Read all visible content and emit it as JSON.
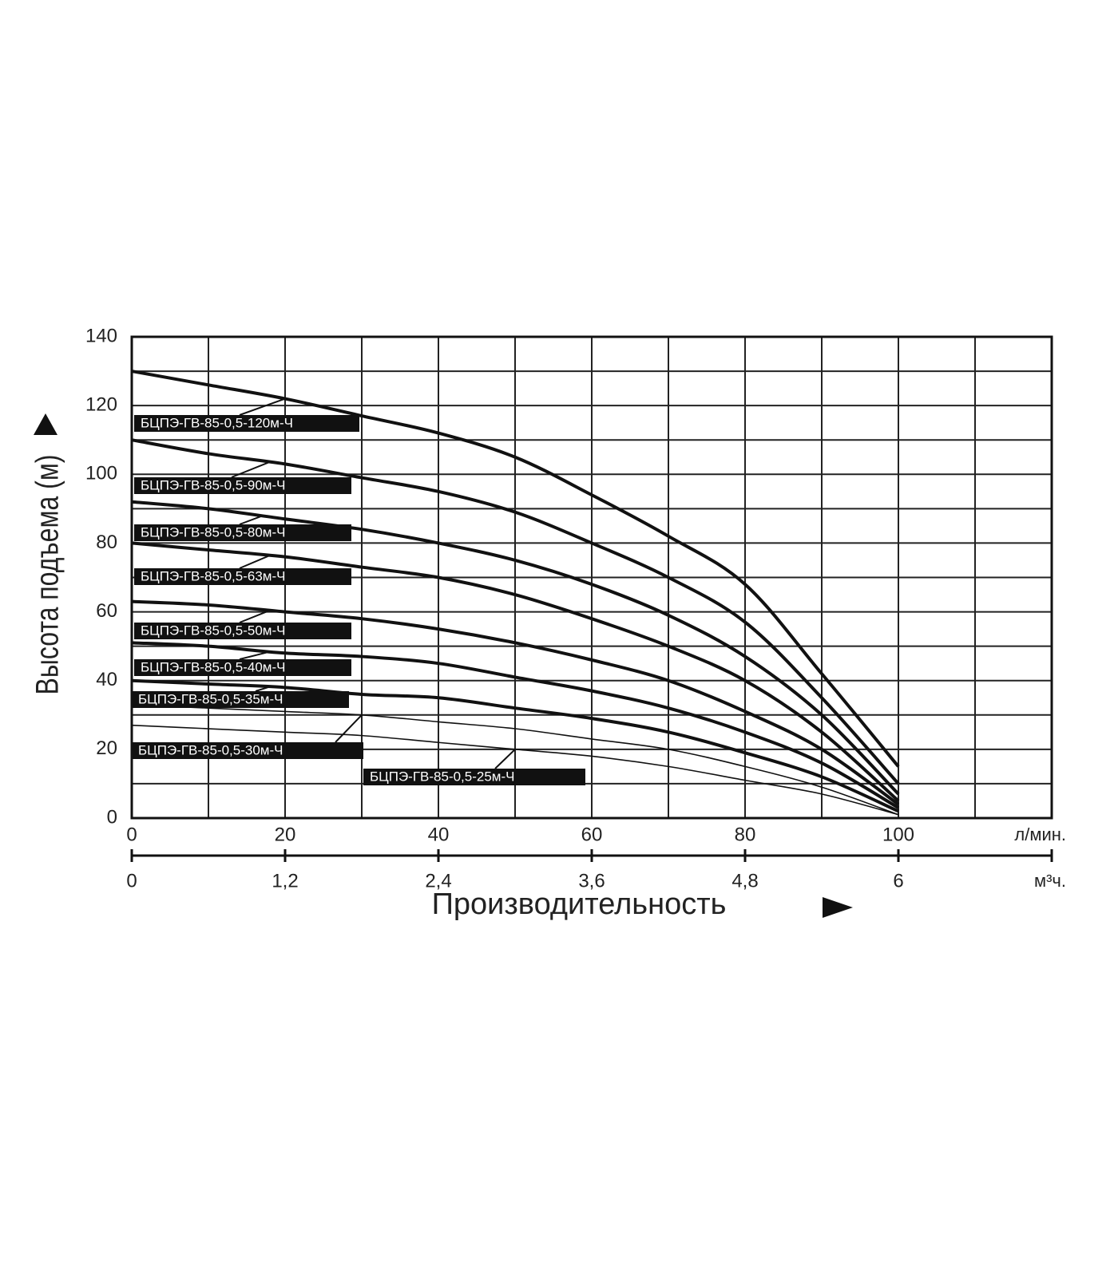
{
  "chart_data": {
    "type": "line",
    "y_label": "Высота подъема (м)",
    "x_label": "Производительность",
    "x_unit": "л/мин.",
    "x2_unit": "м³ч.",
    "x": [
      0,
      10,
      20,
      30,
      40,
      50,
      60,
      70,
      80,
      90,
      100
    ],
    "xlim": [
      0,
      120
    ],
    "xticks": [
      0,
      20,
      40,
      60,
      80,
      100
    ],
    "xgrid": [
      0,
      10,
      20,
      30,
      40,
      50,
      60,
      70,
      80,
      90,
      100,
      110,
      120
    ],
    "x2lim": [
      0,
      7.2
    ],
    "x2ticks": [
      0,
      {
        "value": 1.2,
        "label": "1,2"
      },
      {
        "value": 2.4,
        "label": "2,4"
      },
      {
        "value": 3.6,
        "label": "3,6"
      },
      {
        "value": 4.8,
        "label": "4,8"
      },
      6
    ],
    "ylim": [
      0,
      140
    ],
    "yticks": [
      0,
      20,
      40,
      60,
      80,
      100,
      120,
      140
    ],
    "ygrid": [
      0,
      10,
      20,
      30,
      40,
      50,
      60,
      70,
      80,
      90,
      100,
      110,
      120,
      130,
      140
    ],
    "grid": true,
    "series": [
      {
        "name": "БЦПЭ-ГВ-85-0,5-120м-Ч",
        "color": "#111",
        "values": [
          130,
          126,
          122,
          117,
          112,
          105,
          94,
          82,
          68,
          42,
          15
        ]
      },
      {
        "name": "БЦПЭ-ГВ-85-0,5-90м-Ч",
        "color": "#111",
        "values": [
          110,
          106,
          103,
          99,
          95,
          89,
          80,
          70,
          57,
          35,
          10
        ]
      },
      {
        "name": "БЦПЭ-ГВ-85-0,5-80м-Ч",
        "color": "#111",
        "values": [
          92,
          90,
          87,
          84,
          80,
          75,
          68,
          59,
          47,
          30,
          7
        ]
      },
      {
        "name": "БЦПЭ-ГВ-85-0,5-63м-Ч",
        "color": "#111",
        "values": [
          80,
          78,
          76,
          73,
          70,
          65,
          58,
          50,
          40,
          25,
          5
        ]
      },
      {
        "name": "БЦПЭ-ГВ-85-0,5-50м-Ч",
        "color": "#111",
        "values": [
          63,
          62,
          60,
          58,
          55,
          51,
          46,
          40,
          31,
          20,
          4
        ]
      },
      {
        "name": "БЦПЭ-ГВ-85-0,5-40м-Ч",
        "color": "#111",
        "values": [
          51,
          50,
          48,
          47,
          45,
          41,
          37,
          32,
          25,
          16,
          3
        ]
      },
      {
        "name": "БЦПЭ-ГВ-85-0,5-35м-Ч",
        "color": "#111",
        "values": [
          40,
          39,
          38,
          36,
          35,
          32,
          29,
          25,
          19,
          12,
          2
        ]
      },
      {
        "name": "БЦПЭ-ГВ-85-0,5-30м-Ч",
        "color": "#111",
        "values": [
          33,
          32,
          31,
          30,
          28,
          26,
          23,
          20,
          15,
          9,
          1
        ]
      },
      {
        "name": "БЦПЭ-ГВ-85-0,5-25м-Ч",
        "color": "#111",
        "values": [
          27,
          26,
          25,
          24,
          22,
          20,
          18,
          15,
          11,
          7,
          1
        ]
      }
    ]
  }
}
